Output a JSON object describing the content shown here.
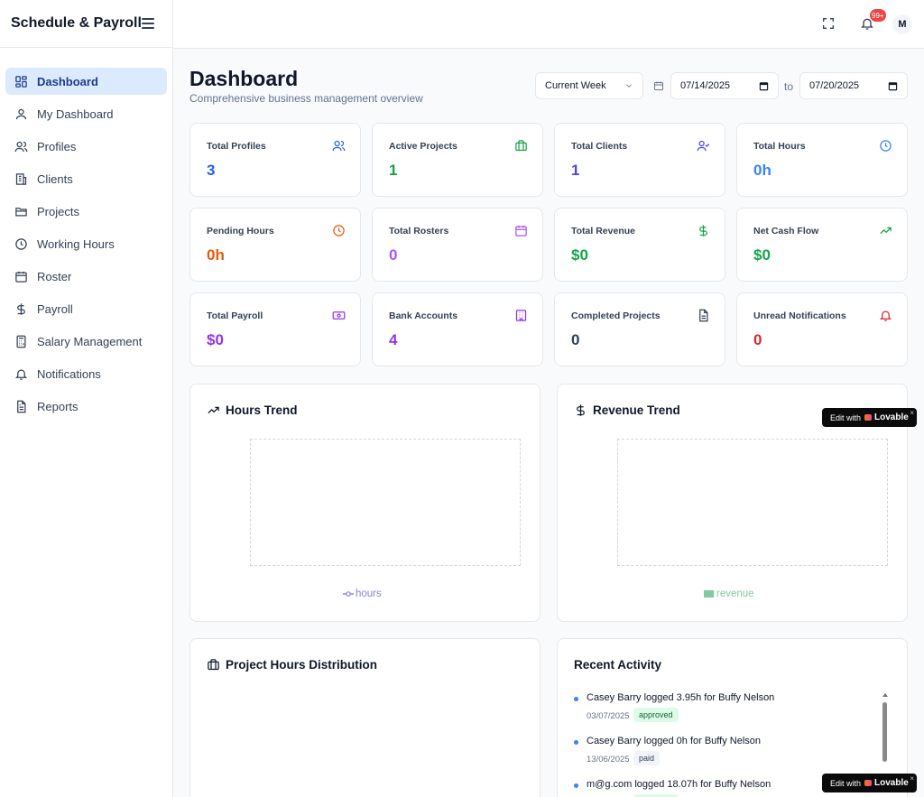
{
  "app": {
    "title": "Schedule & Payroll"
  },
  "sidebar": {
    "items": [
      {
        "label": "Dashboard",
        "icon": "grid-icon"
      },
      {
        "label": "My Dashboard",
        "icon": "user-icon"
      },
      {
        "label": "Profiles",
        "icon": "users-icon"
      },
      {
        "label": "Clients",
        "icon": "building-icon"
      },
      {
        "label": "Projects",
        "icon": "folder-icon"
      },
      {
        "label": "Working Hours",
        "icon": "clock-icon"
      },
      {
        "label": "Roster",
        "icon": "calendar-icon"
      },
      {
        "label": "Payroll",
        "icon": "dollar-icon"
      },
      {
        "label": "Salary Management",
        "icon": "calculator-icon"
      },
      {
        "label": "Notifications",
        "icon": "bell-icon"
      },
      {
        "label": "Reports",
        "icon": "file-text-icon"
      }
    ]
  },
  "topbar": {
    "notification_count": "99+",
    "avatar_initial": "M"
  },
  "header": {
    "title": "Dashboard",
    "subtitle": "Comprehensive business management overview",
    "period_select": "Current Week",
    "date_from": "07/14/2025",
    "to_label": "to",
    "date_to": "07/20/2025"
  },
  "stats": [
    {
      "label": "Total Profiles",
      "value": "3",
      "color": "#2563eb",
      "icon": "users-icon"
    },
    {
      "label": "Active Projects",
      "value": "1",
      "color": "#16a34a",
      "icon": "briefcase-icon"
    },
    {
      "label": "Total Clients",
      "value": "1",
      "color": "#4f46e5",
      "icon": "user-check-icon"
    },
    {
      "label": "Total Hours",
      "value": "0h",
      "color": "#3b82f6",
      "icon": "clock-icon"
    },
    {
      "label": "Pending Hours",
      "value": "0h",
      "color": "#ea580c",
      "icon": "clock-icon"
    },
    {
      "label": "Total Rosters",
      "value": "0",
      "color": "#a855f7",
      "icon": "calendar-icon"
    },
    {
      "label": "Total Revenue",
      "value": "$0",
      "color": "#16a34a",
      "icon": "dollar-icon"
    },
    {
      "label": "Net Cash Flow",
      "value": "$0",
      "color": "#16a34a",
      "icon": "trending-up-icon"
    },
    {
      "label": "Total Payroll",
      "value": "$0",
      "color": "#9333ea",
      "icon": "banknote-icon"
    },
    {
      "label": "Bank Accounts",
      "value": "4",
      "color": "#9333ea",
      "icon": "bank-icon"
    },
    {
      "label": "Completed Projects",
      "value": "0",
      "color": "#334155",
      "icon": "file-icon"
    },
    {
      "label": "Unread Notifications",
      "value": "0",
      "color": "#dc2626",
      "icon": "bell-icon"
    }
  ],
  "panels": {
    "hours_trend": {
      "title": "Hours Trend",
      "legend": "hours",
      "legend_color": "#8884d8"
    },
    "revenue_trend": {
      "title": "Revenue Trend",
      "legend": "revenue",
      "legend_color": "#82ca9d"
    },
    "project_distribution": {
      "title": "Project Hours Distribution"
    },
    "recent_activity": {
      "title": "Recent Activity",
      "items": [
        {
          "text": "Casey Barry logged 3.95h for Buffy Nelson",
          "date": "03/07/2025",
          "status": "approved",
          "status_bg": "#dcfce7",
          "status_color": "#166534"
        },
        {
          "text": "Casey Barry logged 0h for Buffy Nelson",
          "date": "13/06/2025",
          "status": "paid",
          "status_bg": "#f1f5f9",
          "status_color": "#334155"
        },
        {
          "text": "m@g.com logged 18.07h for Buffy Nelson",
          "date": "",
          "status": "",
          "status_bg": "#dcfce7",
          "status_color": "#166534"
        }
      ]
    }
  },
  "lovable_badge": {
    "prefix": "Edit with",
    "brand": "Lovable",
    "close": "×"
  }
}
